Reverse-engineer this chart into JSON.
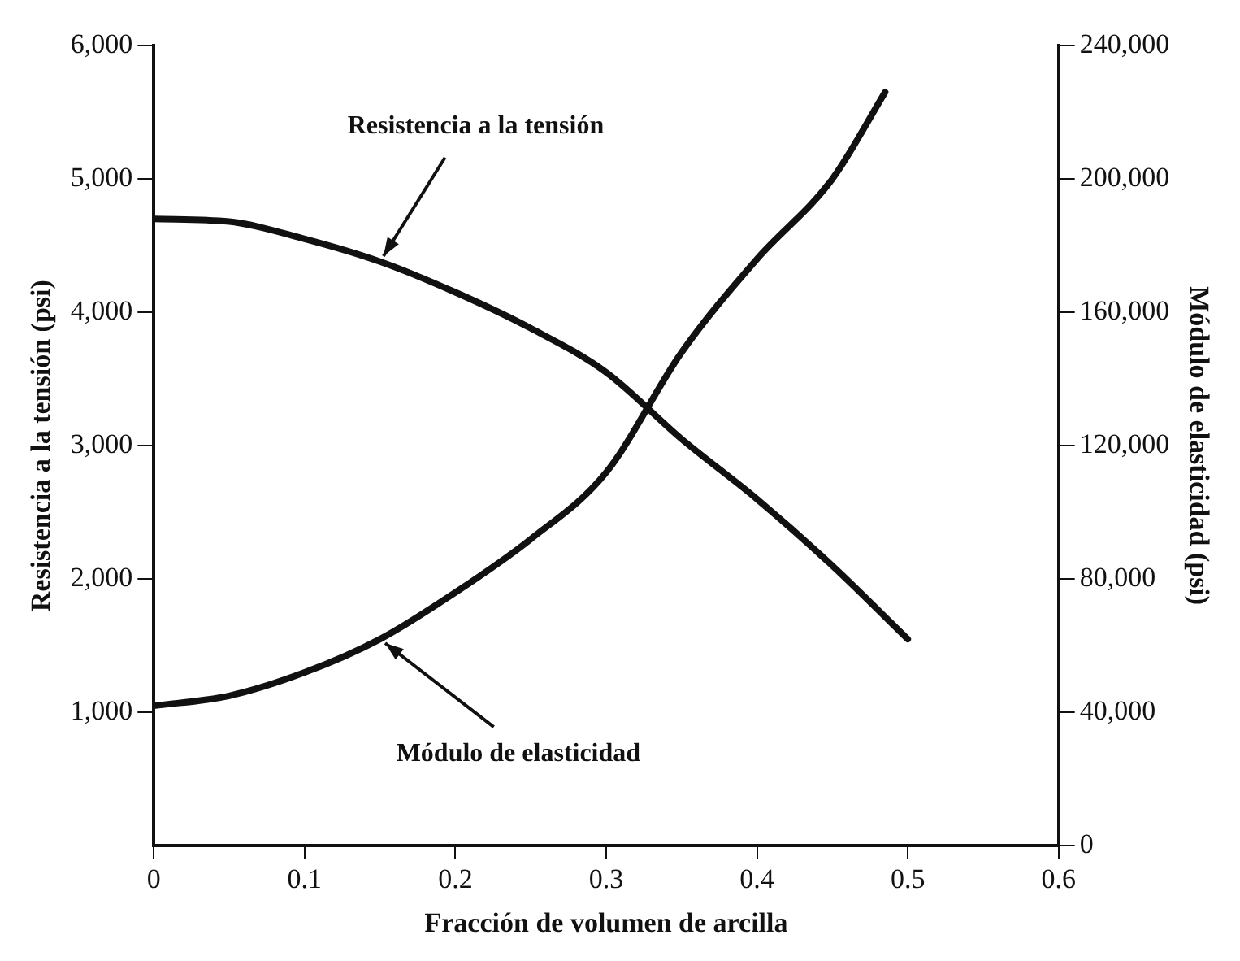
{
  "chart_data": {
    "type": "line",
    "xlabel": "Fracción de volumen de arcilla",
    "ylabel": "Resistencia a la tensión (psi)",
    "y2label": "Módulo de elasticidad (psi)",
    "series": [
      {
        "name": "Resistencia a la tensión",
        "color": "#111111",
        "x": [
          0,
          0.05,
          0.1,
          0.15,
          0.2,
          0.25,
          0.3,
          0.35,
          0.4,
          0.45,
          0.5
        ],
        "values": [
          4700,
          4680,
          4550,
          4380,
          4150,
          3880,
          3550,
          3050,
          2600,
          2100,
          1550
        ]
      },
      {
        "name": "Módulo de elasticidad",
        "color": "#111111",
        "axis": "y2",
        "x": [
          0,
          0.05,
          0.1,
          0.15,
          0.2,
          0.25,
          0.3,
          0.35,
          0.4,
          0.45,
          0.485
        ],
        "values": [
          42000,
          45000,
          52000,
          62000,
          76000,
          92000,
          112000,
          148000,
          176000,
          200000,
          226000
        ]
      }
    ],
    "xlim": [
      0,
      0.6
    ],
    "xticks": [
      0,
      0.1,
      0.2,
      0.3,
      0.4,
      0.5,
      0.6
    ],
    "ylim": [
      0,
      6000
    ],
    "yticks": [
      {
        "value": 1000,
        "label": "1,000"
      },
      {
        "value": 2000,
        "label": "2,000"
      },
      {
        "value": 3000,
        "label": "3,000"
      },
      {
        "value": 4000,
        "label": "4,000"
      },
      {
        "value": 5000,
        "label": "5,000"
      },
      {
        "value": 6000,
        "label": "6,000"
      }
    ],
    "y2lim": [
      0,
      240000
    ],
    "y2ticks": [
      0,
      {
        "value": 40000,
        "label": "40,000"
      },
      {
        "value": 80000,
        "label": "80,000"
      },
      {
        "value": 120000,
        "label": "120,000"
      },
      {
        "value": 160000,
        "label": "160,000"
      },
      {
        "value": 200000,
        "label": "200,000"
      },
      {
        "value": 240000,
        "label": "240,000"
      }
    ],
    "grid": false,
    "legend": false,
    "marker": "none",
    "line_style": "solid"
  }
}
